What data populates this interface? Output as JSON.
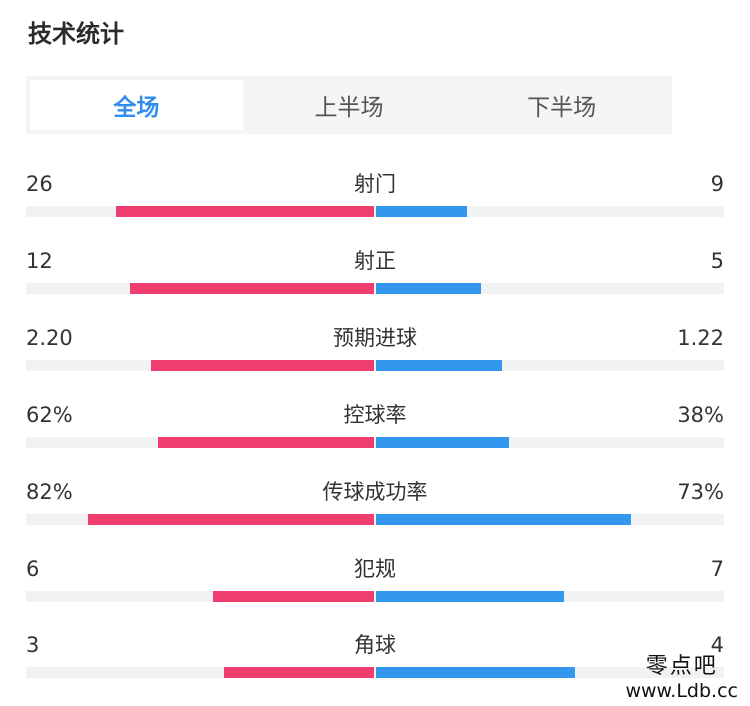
{
  "title": "技术统计",
  "tabs": [
    {
      "label": "全场",
      "active": true
    },
    {
      "label": "上半场",
      "active": false
    },
    {
      "label": "下半场",
      "active": false
    }
  ],
  "colors": {
    "home": "#ee3d6e",
    "away": "#3497ee",
    "active_tab": "#2f8df0"
  },
  "stats": [
    {
      "label": "射门",
      "home": "26",
      "away": "9",
      "home_fraction": 0.74,
      "away_fraction": 0.26
    },
    {
      "label": "射正",
      "home": "12",
      "away": "5",
      "home_fraction": 0.7,
      "away_fraction": 0.3
    },
    {
      "label": "预期进球",
      "home": "2.20",
      "away": "1.22",
      "home_fraction": 0.64,
      "away_fraction": 0.36
    },
    {
      "label": "控球率",
      "home": "62%",
      "away": "38%",
      "home_fraction": 0.62,
      "away_fraction": 0.38
    },
    {
      "label": "传球成功率",
      "home": "82%",
      "away": "73%",
      "home_fraction": 0.82,
      "away_fraction": 0.73
    },
    {
      "label": "犯规",
      "home": "6",
      "away": "7",
      "home_fraction": 0.46,
      "away_fraction": 0.54
    },
    {
      "label": "角球",
      "home": "3",
      "away": "4",
      "home_fraction": 0.43,
      "away_fraction": 0.57
    }
  ],
  "watermark": {
    "line1": "零点吧",
    "line2": "www.Ldb.cc"
  }
}
